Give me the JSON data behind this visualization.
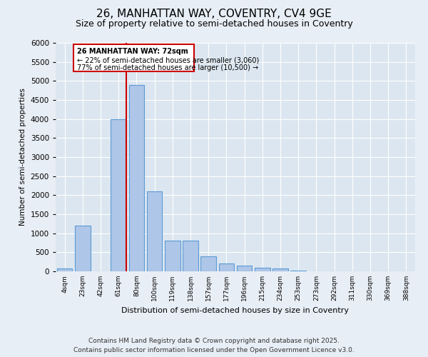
{
  "title1": "26, MANHATTAN WAY, COVENTRY, CV4 9GE",
  "title2": "Size of property relative to semi-detached houses in Coventry",
  "xlabel": "Distribution of semi-detached houses by size in Coventry",
  "ylabel": "Number of semi-detached properties",
  "categories": [
    "4sqm",
    "23sqm",
    "42sqm",
    "61sqm",
    "80sqm",
    "100sqm",
    "119sqm",
    "138sqm",
    "157sqm",
    "177sqm",
    "196sqm",
    "215sqm",
    "234sqm",
    "253sqm",
    "273sqm",
    "292sqm",
    "311sqm",
    "330sqm",
    "369sqm",
    "388sqm"
  ],
  "values": [
    80,
    1200,
    0,
    4000,
    4900,
    2100,
    800,
    800,
    400,
    200,
    150,
    100,
    80,
    10,
    0,
    0,
    0,
    0,
    0,
    0
  ],
  "bar_color": "#aec6e8",
  "bar_edge_color": "#5b9bd5",
  "annotation_title": "26 MANHATTAN WAY: 72sqm",
  "annotation_line1": "← 22% of semi-detached houses are smaller (3,060)",
  "annotation_line2": "77% of semi-detached houses are larger (10,500) →",
  "annotation_box_color": "#ffffff",
  "annotation_box_edge": "#cc0000",
  "vline_color": "#cc0000",
  "ylim": [
    0,
    6000
  ],
  "yticks": [
    0,
    500,
    1000,
    1500,
    2000,
    2500,
    3000,
    3500,
    4000,
    4500,
    5000,
    5500,
    6000
  ],
  "bg_color": "#e8eef5",
  "plot_bg_color": "#dce6f0",
  "footer1": "Contains HM Land Registry data © Crown copyright and database right 2025.",
  "footer2": "Contains public sector information licensed under the Open Government Licence v3.0.",
  "title_fontsize": 11,
  "subtitle_fontsize": 9,
  "footer_fontsize": 6.5
}
